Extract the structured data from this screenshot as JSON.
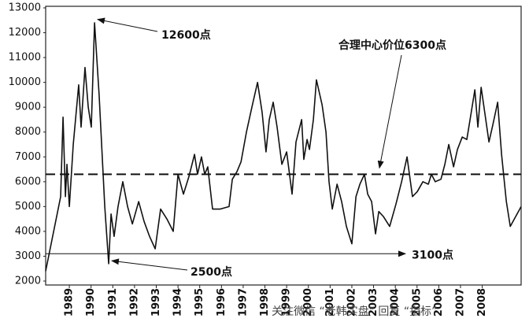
{
  "chart_data": {
    "type": "line",
    "x": [
      1987.91,
      1988.6,
      1988.71,
      1988.82,
      1988.89,
      1989.0,
      1989.18,
      1989.43,
      1989.54,
      1989.72,
      1989.87,
      1990.01,
      1990.16,
      1990.37,
      1990.63,
      1990.81,
      1990.92,
      1991.06,
      1991.24,
      1991.46,
      1991.68,
      1991.9,
      1992.19,
      1992.44,
      1992.69,
      1992.95,
      1993.2,
      1993.49,
      1993.78,
      1994.0,
      1994.25,
      1994.5,
      1994.76,
      1994.9,
      1995.08,
      1995.23,
      1995.37,
      1995.59,
      1995.95,
      1996.35,
      1996.5,
      1996.71,
      1996.9,
      1997.15,
      1997.4,
      1997.66,
      1997.87,
      1998.05,
      1998.2,
      1998.38,
      1998.56,
      1998.78,
      1999.0,
      1999.25,
      1999.43,
      1999.69,
      1999.79,
      1999.94,
      2000.05,
      2000.23,
      2000.37,
      2000.63,
      2000.81,
      2000.95,
      2001.1,
      2001.32,
      2001.53,
      2001.75,
      2002.0,
      2002.19,
      2002.37,
      2002.58,
      2002.73,
      2002.91,
      2003.09,
      2003.24,
      2003.45,
      2003.74,
      2004.03,
      2004.29,
      2004.54,
      2004.79,
      2005.01,
      2005.27,
      2005.52,
      2005.66,
      2005.84,
      2006.1,
      2006.28,
      2006.46,
      2006.68,
      2006.86,
      2007.08,
      2007.29,
      2007.44,
      2007.66,
      2007.8,
      2007.95,
      2008.13,
      2008.31,
      2008.49,
      2008.71,
      2008.89,
      2009.11,
      2009.29,
      2009.54,
      2009.79
    ],
    "series": [
      {
        "color": "#111111",
        "values": [
          2400,
          5400,
          8600,
          5400,
          6700,
          5000,
          7500,
          9900,
          8200,
          10600,
          9000,
          8200,
          12400,
          9500,
          5000,
          2700,
          4700,
          3800,
          5000,
          6000,
          5000,
          4300,
          5200,
          4400,
          3800,
          3300,
          4900,
          4500,
          4000,
          6300,
          5500,
          6200,
          7100,
          6300,
          7000,
          6300,
          6600,
          4900,
          4900,
          5000,
          6100,
          6400,
          6800,
          8000,
          9000,
          10000,
          8800,
          7200,
          8500,
          9200,
          8200,
          6700,
          7200,
          5500,
          7600,
          8500,
          6900,
          7700,
          7300,
          8500,
          10100,
          9100,
          8000,
          6000,
          4900,
          5900,
          5200,
          4200,
          3500,
          5400,
          5900,
          6300,
          5500,
          5200,
          3900,
          4800,
          4600,
          4200,
          5100,
          6000,
          7000,
          5400,
          5600,
          6000,
          5900,
          6300,
          6000,
          6100,
          6700,
          7500,
          6600,
          7300,
          7800,
          7700,
          8500,
          9700,
          8200,
          9800,
          8700,
          7600,
          8300,
          9200,
          7100,
          5200,
          4200,
          4600,
          5000
        ]
      }
    ],
    "xlim": [
      1987.91,
      2009.79
    ],
    "xticks": [
      1989,
      1990,
      1991,
      1992,
      1993,
      1994,
      1995,
      1996,
      1997,
      1998,
      1999,
      2000,
      2001,
      2002,
      2003,
      2004,
      2005,
      2006,
      2007,
      2008
    ],
    "ylim": [
      2000,
      13000
    ],
    "yticks": [
      2000,
      3000,
      4000,
      5000,
      6000,
      7000,
      8000,
      9000,
      10000,
      11000,
      12000,
      13000
    ],
    "reference_lines": [
      {
        "value": 6300,
        "style": "dashed"
      },
      {
        "value": 3100,
        "style": "arrow"
      }
    ],
    "annotations": [
      {
        "text": "12600点",
        "value": 12600
      },
      {
        "text": "合理中心价位6300点",
        "value": 6300
      },
      {
        "text": "2500点",
        "value": 2500
      },
      {
        "text": "3100点",
        "value": 3100
      }
    ],
    "watermark": "关注微信 “老韩实盘” 回复 “指标”"
  }
}
